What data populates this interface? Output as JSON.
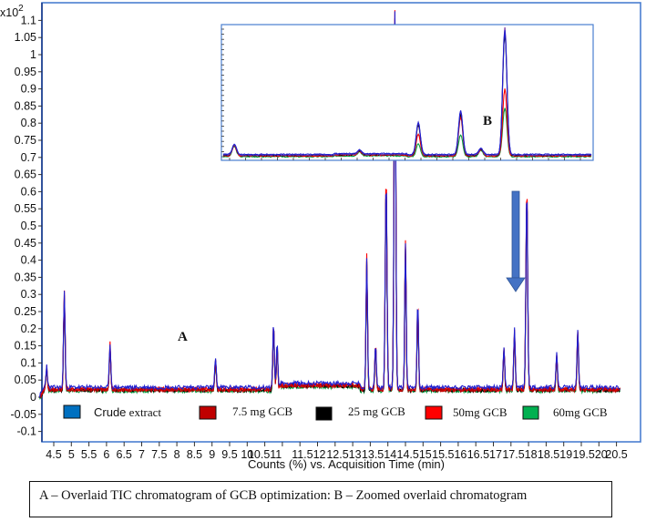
{
  "chart_data": [
    {
      "id": "main",
      "type": "line",
      "title": "A – Overlaid TIC chromatogram of GCB optimization",
      "annotation": "A",
      "xlabel": "Counts (%) vs. Acquisition Time (min)",
      "ylabel": "",
      "y_multiplier": "x10",
      "y_multiplier_exp": "2",
      "xlim": [
        4.1,
        20.6
      ],
      "ylim": [
        -0.12,
        1.12
      ],
      "grid": false,
      "legend_position": "bottom-inside",
      "x_ticks": [
        "4.5",
        "5",
        "5.5",
        "6",
        "6.5",
        "7",
        "7.5",
        "8",
        "8.5",
        "9",
        "9.5",
        "10",
        "10.5",
        "11",
        "11.5",
        "12",
        "12.5",
        "13",
        "13.5",
        "14",
        "14.5",
        "15",
        "15.5",
        "16",
        "16.5",
        "17",
        "17.5",
        "18",
        "18.5",
        "19",
        "19.5",
        "20",
        "20.5"
      ],
      "x_tick_labels_rendered": [
        "4.5",
        "5",
        "5.5",
        "6",
        "6.5",
        "7",
        "7.5",
        "8",
        "8.5",
        "9",
        "9.5",
        "10",
        "10.511",
        "11.512",
        "12.513",
        "13.514",
        "14.515",
        "15.516",
        "16.517",
        "17.518",
        "18.519",
        "19.520",
        "20.5"
      ],
      "y_ticks": [
        "1.1",
        "1.05",
        "1",
        "0.95",
        "0.9",
        "0.85",
        "0.8",
        "0.75",
        "0.7",
        "0.65",
        "0.6",
        "0.55",
        "0.5",
        "0.45",
        "0.4",
        "0.35",
        "0.3",
        "0.25",
        "0.2",
        "0.15",
        "0.1",
        "0.05",
        "0",
        "-0.05",
        "-0.1"
      ],
      "series": [
        {
          "name": "Crude extract",
          "color": "#0070c0",
          "trace_color": "#1f1fd0"
        },
        {
          "name": "7.5 mg GCB",
          "color": "#c00000",
          "trace_color": "#c00000"
        },
        {
          "name": "25 mg GCB",
          "color": "#000000",
          "trace_color": "#000000"
        },
        {
          "name": "50mg GCB",
          "color": "#ff0000",
          "trace_color": "#ff0000"
        },
        {
          "name": "60mg GCB",
          "color": "#00b050",
          "trace_color": "#00a040"
        }
      ],
      "peaks": [
        {
          "x": 4.3,
          "y": 0.05
        },
        {
          "x": 4.8,
          "y": 0.28
        },
        {
          "x": 6.1,
          "y": 0.13
        },
        {
          "x": 9.1,
          "y": 0.09
        },
        {
          "x": 10.75,
          "y": 0.19
        },
        {
          "x": 10.85,
          "y": 0.13
        },
        {
          "x": 13.4,
          "y": 0.38
        },
        {
          "x": 13.65,
          "y": 0.13
        },
        {
          "x": 13.95,
          "y": 0.61
        },
        {
          "x": 14.2,
          "y": 1.1
        },
        {
          "x": 14.5,
          "y": 0.42
        },
        {
          "x": 14.85,
          "y": 0.25
        },
        {
          "x": 17.3,
          "y": 0.12
        },
        {
          "x": 17.6,
          "y": 0.17
        },
        {
          "x": 17.95,
          "y": 0.58
        },
        {
          "x": 18.8,
          "y": 0.1
        },
        {
          "x": 19.4,
          "y": 0.17
        }
      ]
    },
    {
      "id": "inset",
      "type": "line",
      "title": "B – Zoomed overlaid chromatogram",
      "annotation": "B",
      "peaks": [
        {
          "pos": 0.03,
          "h": 0.08
        },
        {
          "pos": 0.37,
          "h": 0.03
        },
        {
          "pos": 0.53,
          "h_blue": 0.25,
          "h_red": 0.17,
          "h_green": 0.1
        },
        {
          "pos": 0.645,
          "h_blue": 0.34,
          "h_red": 0.3
        },
        {
          "pos": 0.7,
          "h": 0.05
        },
        {
          "pos": 0.765,
          "h_purple": 0.99,
          "h_red": 0.52,
          "h_green": 0.38
        }
      ]
    }
  ],
  "legend": {
    "items": [
      {
        "label_main": "Crude",
        "label_rest": " extract",
        "color": "#0070c0"
      },
      {
        "label": "7.5 mg GCB",
        "color": "#c00000"
      },
      {
        "label": "25 mg GCB",
        "color": "#000000"
      },
      {
        "label": "50mg GCB",
        "color": "#ff0000"
      },
      {
        "label": "60mg GCB",
        "color": "#00b050"
      }
    ]
  },
  "arrow": {
    "color": "#4472c4",
    "direction": "down"
  },
  "caption": "A – Overlaid TIC chromatogram of GCB optimization: B – Zoomed overlaid chromatogram"
}
